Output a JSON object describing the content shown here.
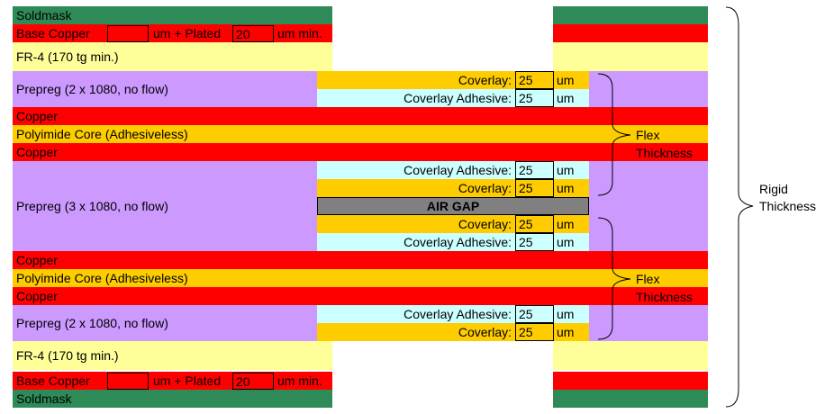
{
  "layers": {
    "soldmask": "Soldmask",
    "base_copper": "Base Copper",
    "um_plus_plated": "um +  Plated",
    "plated_value": "20",
    "um_min": "um min.",
    "fr4": "FR-4 (170 tg min.)",
    "prepreg_2x1080": "Prepreg (2 x 1080, no flow)",
    "prepreg_3x1080": "Prepreg (3 x 1080, no flow)",
    "copper": "Copper",
    "polyimide_core": "Polyimide Core (Adhesiveless)"
  },
  "coverlay": {
    "coverlay_label": "Coverlay:",
    "adhesive_label": "Coverlay Adhesive:",
    "value": "25",
    "unit": "um"
  },
  "air_gap": "AIR GAP",
  "flex_thickness": {
    "line1": "Flex",
    "line2": "Thickness"
  },
  "rigid_thickness": {
    "line1": "Rigid",
    "line2": "Thickness"
  },
  "colors": {
    "soldmask": "#2e8b57",
    "copper": "#ff0000",
    "fr4": "#ffff99",
    "prepreg": "#cc99ff",
    "polyimide": "#ffcc00",
    "coverlay": "#ffcc00",
    "coverlay_adhesive": "#ccffff",
    "air_gap": "#808080"
  }
}
